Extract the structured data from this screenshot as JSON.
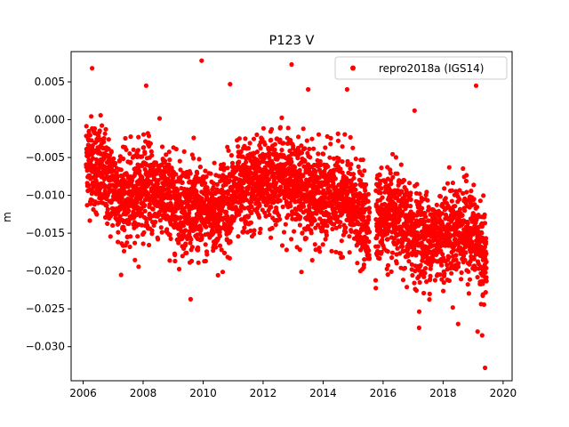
{
  "chart_data": {
    "type": "scatter",
    "title": "P123 V",
    "xlabel": "",
    "ylabel": "m",
    "xlim": [
      2005.6,
      2020.3
    ],
    "ylim": [
      -0.0345,
      0.009
    ],
    "xticks": [
      2006,
      2008,
      2010,
      2012,
      2014,
      2016,
      2018,
      2020
    ],
    "xtick_labels": [
      "2006",
      "2008",
      "2010",
      "2012",
      "2014",
      "2016",
      "2018",
      "2020"
    ],
    "yticks": [
      0.005,
      0.0,
      -0.005,
      -0.01,
      -0.015,
      -0.02,
      -0.025,
      -0.03
    ],
    "ytick_labels": [
      "0.005",
      "0.000",
      "−0.005",
      "−0.010",
      "−0.015",
      "−0.020",
      "−0.025",
      "−0.030"
    ],
    "grid": false,
    "legend_position": "top-right",
    "series": [
      {
        "name": "repro2018a (IGS14)",
        "color": "#ff0000",
        "marker": "circle",
        "trend": [
          [
            2006.1,
            -0.005
          ],
          [
            2006.5,
            -0.0065
          ],
          [
            2007.0,
            -0.009
          ],
          [
            2007.5,
            -0.011
          ],
          [
            2008.0,
            -0.0085
          ],
          [
            2008.5,
            -0.0095
          ],
          [
            2009.0,
            -0.011
          ],
          [
            2009.5,
            -0.0115
          ],
          [
            2010.0,
            -0.0125
          ],
          [
            2010.5,
            -0.012
          ],
          [
            2011.0,
            -0.01
          ],
          [
            2011.5,
            -0.009
          ],
          [
            2012.0,
            -0.008
          ],
          [
            2012.5,
            -0.0075
          ],
          [
            2013.0,
            -0.008
          ],
          [
            2013.5,
            -0.0095
          ],
          [
            2014.0,
            -0.0105
          ],
          [
            2014.5,
            -0.01
          ],
          [
            2015.0,
            -0.0115
          ],
          [
            2015.5,
            -0.014
          ],
          [
            2016.0,
            -0.0125
          ],
          [
            2016.5,
            -0.0135
          ],
          [
            2017.0,
            -0.015
          ],
          [
            2017.5,
            -0.016
          ],
          [
            2018.0,
            -0.015
          ],
          [
            2018.5,
            -0.0145
          ],
          [
            2019.0,
            -0.015
          ],
          [
            2019.3,
            -0.0175
          ],
          [
            2019.45,
            -0.019
          ]
        ],
        "spread": 0.004,
        "outliers": [
          [
            2006.3,
            0.0068
          ],
          [
            2009.95,
            0.0078
          ],
          [
            2012.95,
            0.0073
          ],
          [
            2019.1,
            0.0045
          ],
          [
            2008.1,
            0.0045
          ],
          [
            2010.9,
            0.0047
          ],
          [
            2013.5,
            0.004
          ],
          [
            2014.8,
            0.004
          ],
          [
            2017.05,
            0.0012
          ],
          [
            2019.4,
            -0.0328
          ],
          [
            2019.3,
            -0.0285
          ],
          [
            2018.5,
            -0.027
          ],
          [
            2017.2,
            -0.0275
          ],
          [
            2019.15,
            -0.028
          ]
        ]
      }
    ]
  }
}
